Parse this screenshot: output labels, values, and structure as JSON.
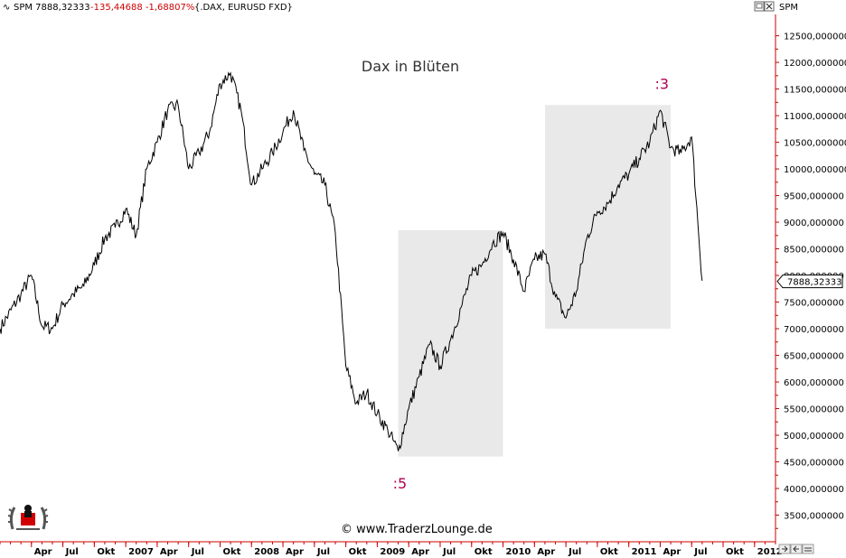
{
  "header": {
    "symbol_prefix": "SPM 7888,32333",
    "change": "-135,44688 -1,68807%",
    "instrument": "{.DAX, EURUSD FXD}",
    "right_label": "SPM"
  },
  "colors": {
    "change": "#cc0000",
    "axis": "#cc0000",
    "box": "#e9e9e9",
    "wave": "#b0004f",
    "line": "#000000"
  },
  "copyright": "© www.TraderzLounge.de",
  "chart_data": {
    "type": "line",
    "title": "Dax in Blüten",
    "ylim": [
      3000,
      12900
    ],
    "y_ticks": [
      "12500,000000",
      "12000,000000",
      "11500,000000",
      "11000,000000",
      "10500,000000",
      "10000,000000",
      "9500,000000",
      "9000,000000",
      "8500,000000",
      "8000,000000",
      "7500,000000",
      "7000,000000",
      "6500,000000",
      "6000,000000",
      "5500,000000",
      "5000,000000",
      "4500,000000",
      "4000,000000",
      "3500,000000"
    ],
    "y_tick_values": [
      12500,
      12000,
      11500,
      11000,
      10500,
      10000,
      9500,
      9000,
      8500,
      8000,
      7500,
      7000,
      6500,
      6000,
      5500,
      5000,
      4500,
      4000,
      3500
    ],
    "x_ticks": [
      "Apr",
      "Jul",
      "Okt",
      "2007",
      "Apr",
      "Jul",
      "Okt",
      "2008",
      "Apr",
      "Jul",
      "Okt",
      "2009",
      "Apr",
      "Jul",
      "Okt",
      "2010",
      "Apr",
      "Jul",
      "Okt",
      "2011",
      "Apr",
      "Jul",
      "Okt",
      "2012"
    ],
    "x_tick_values": [
      "2006-04",
      "2006-07",
      "2006-10",
      "2007-01",
      "2007-04",
      "2007-07",
      "2007-10",
      "2008-01",
      "2008-04",
      "2008-07",
      "2008-10",
      "2009-01",
      "2009-04",
      "2009-07",
      "2009-10",
      "2010-01",
      "2010-04",
      "2010-07",
      "2010-10",
      "2011-01",
      "2011-04",
      "2011-07",
      "2011-10",
      "2012-01"
    ],
    "xlim": [
      "2006-01",
      "2012-03"
    ],
    "last_value_label": "7888,32333",
    "last_value": 7888.32,
    "series": [
      {
        "x": [
          "2006-01",
          "2006-03",
          "2006-04",
          "2006-05",
          "2006-06",
          "2006-07",
          "2006-08",
          "2006-09",
          "2006-10",
          "2006-11",
          "2006-12",
          "2007-01",
          "2007-02",
          "2007-03",
          "2007-04",
          "2007-05",
          "2007-06",
          "2007-07",
          "2007-08",
          "2007-09",
          "2007-10",
          "2007-11",
          "2007-12",
          "2008-01",
          "2008-02",
          "2008-03",
          "2008-04",
          "2008-05",
          "2008-06",
          "2008-07",
          "2008-08",
          "2008-09",
          "2008-10",
          "2008-11",
          "2008-12",
          "2009-01",
          "2009-02",
          "2009-03",
          "2009-04",
          "2009-05",
          "2009-06",
          "2009-07",
          "2009-08",
          "2009-09",
          "2009-10",
          "2009-11",
          "2009-12",
          "2010-01",
          "2010-02",
          "2010-03",
          "2010-04",
          "2010-05",
          "2010-06",
          "2010-07",
          "2010-08",
          "2010-09",
          "2010-10",
          "2010-11",
          "2010-12",
          "2011-01",
          "2011-02",
          "2011-03",
          "2011-04",
          "2011-05",
          "2011-06",
          "2011-07",
          "2011-08"
        ],
        "values": [
          7000,
          7650,
          8000,
          7050,
          7000,
          7450,
          7650,
          7800,
          8200,
          8700,
          8900,
          9250,
          8750,
          10000,
          10500,
          11100,
          11200,
          10000,
          10300,
          10700,
          11600,
          11800,
          11100,
          9700,
          10000,
          10300,
          10700,
          11100,
          10350,
          9900,
          9700,
          8800,
          6300,
          5600,
          5800,
          5400,
          5100,
          4700,
          5500,
          6100,
          6700,
          6300,
          6800,
          7400,
          8000,
          8200,
          8600,
          8800,
          8300,
          7700,
          8300,
          8400,
          7600,
          7200,
          7700,
          8700,
          9200,
          9350,
          9700,
          9900,
          10200,
          10500,
          11100,
          10400,
          10300,
          10600,
          7900
        ]
      }
    ],
    "annotations": [
      {
        "label": ":5",
        "x": "2009-03",
        "y": 4000
      },
      {
        "label": ":3",
        "x": "2011-04",
        "y": 11500
      }
    ],
    "boxes": [
      {
        "x_start": "2009-03",
        "x_end": "2010-01",
        "y_low": 4600,
        "y_high": 8850
      },
      {
        "x_start": "2010-05",
        "x_end": "2011-05",
        "y_low": 7000,
        "y_high": 11200
      }
    ]
  }
}
